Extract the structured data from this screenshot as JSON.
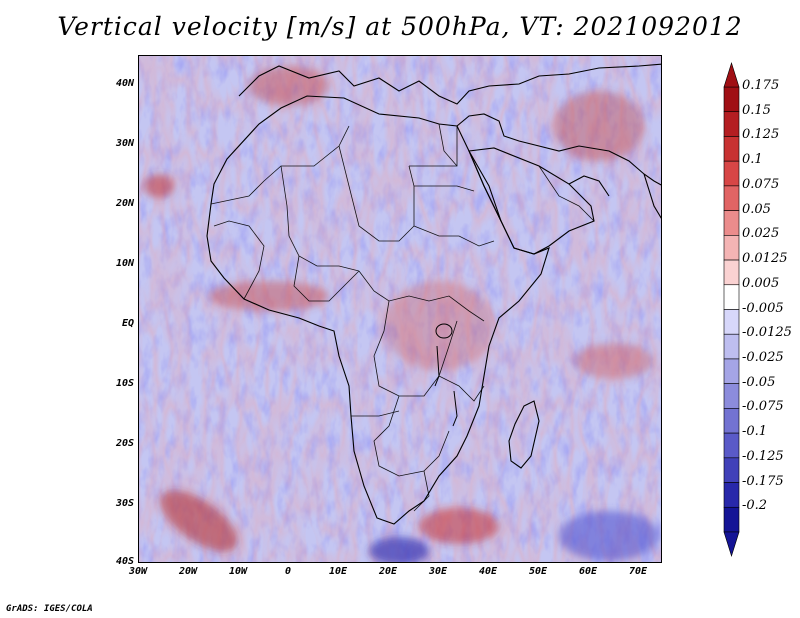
{
  "title": "Vertical velocity [m/s] at 500hPa, VT: 2021092012",
  "credit": "GrADS: IGES/COLA",
  "map": {
    "lat_range": [
      -40,
      45
    ],
    "lon_range": [
      -30,
      75
    ],
    "lat_labels": [
      "40N",
      "30N",
      "20N",
      "10N",
      "EQ",
      "10S",
      "20S",
      "30S",
      "40S"
    ],
    "lon_labels": [
      "30W",
      "20W",
      "10W",
      "0",
      "10E",
      "20E",
      "30E",
      "40E",
      "50E",
      "60E",
      "70E"
    ]
  },
  "colorbar": {
    "labels": [
      "0.175",
      "0.15",
      "0.125",
      "0.1",
      "0.075",
      "0.05",
      "0.025",
      "0.0125",
      "0.005",
      "-0.005",
      "-0.0125",
      "-0.025",
      "-0.05",
      "-0.075",
      "-0.1",
      "-0.125",
      "-0.175",
      "-0.2"
    ],
    "colors": [
      "#a00f14",
      "#b41e22",
      "#c83232",
      "#d74646",
      "#e16464",
      "#eb8c8c",
      "#f4b4b4",
      "#fad2d2",
      "#ffffff",
      "#d7d7fa",
      "#bebef0",
      "#a5a5e6",
      "#8c8cdc",
      "#7373d2",
      "#5a5ac8",
      "#4141b9",
      "#2828aa",
      "#141496"
    ]
  }
}
